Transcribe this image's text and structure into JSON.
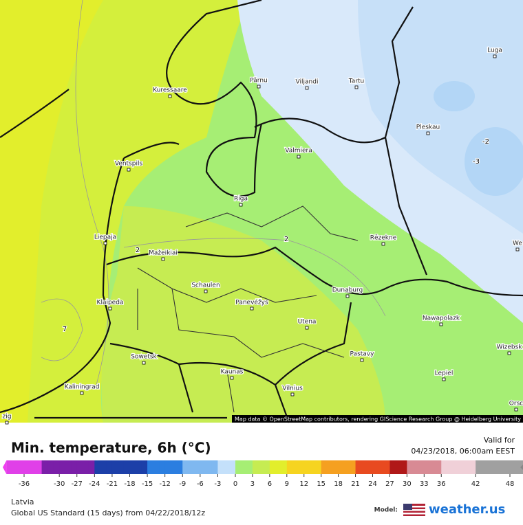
{
  "header": {
    "title": "Min. temperature, 6h (°C)",
    "valid_label": "Valid for",
    "valid_time": "04/23/2018, 06:00am EEST"
  },
  "map": {
    "attribution": "Map data © OpenStreetMap contributors, rendering GIScience Research Group @ Heidelberg University",
    "cities": [
      "Kuressaare",
      "Pärnu",
      "Viljandi",
      "Tartu",
      "Luga",
      "Pleskau",
      "Valmiera",
      "Ventspils",
      "Riga",
      "Liepaja",
      "Rēzekne",
      "Mažeikiai",
      "Schaulen",
      "Panevėžys",
      "Dunaburg",
      "Klaipeda",
      "Utena",
      "Nawapolazk",
      "Wizebsk",
      "Sowetsk",
      "Pastavy",
      "Kaunas",
      "Lepiel",
      "Kaliningrad",
      "Vilnius",
      "Orsc",
      "We",
      "zig"
    ],
    "contour_labels": [
      "7",
      "-3",
      "-2",
      "2",
      "2"
    ]
  },
  "legend": {
    "ticks": [
      -36,
      -30,
      -27,
      -24,
      -21,
      -18,
      -15,
      -12,
      -9,
      -6,
      -3,
      0,
      3,
      6,
      9,
      12,
      15,
      18,
      21,
      24,
      27,
      30,
      33,
      36,
      42,
      48
    ]
  },
  "footer": {
    "region": "Latvia",
    "model_run": "Global US Standard (15 days) from 04/22/2018/12z",
    "model_label": "Model:",
    "brand": "weather.us"
  }
}
